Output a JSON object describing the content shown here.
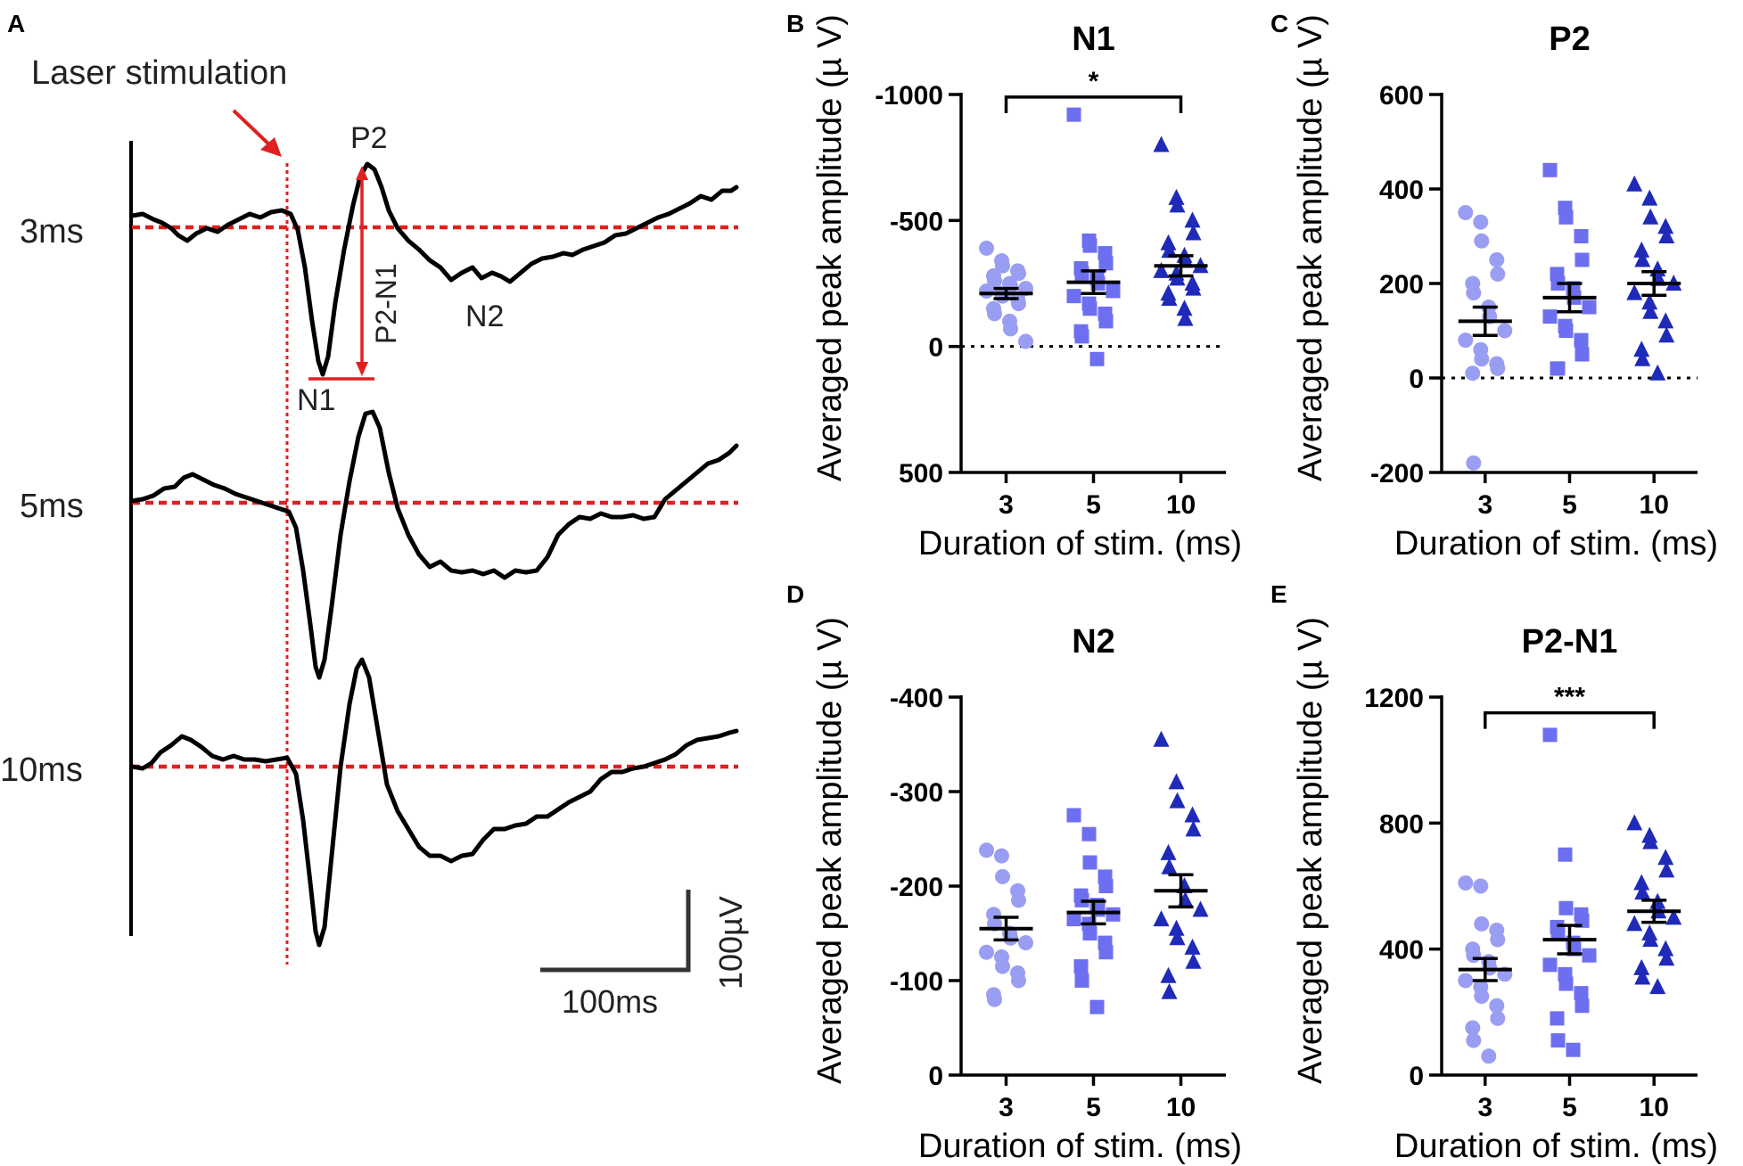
{
  "panel_a": {
    "letter": "A",
    "stim_label": "Laser stimulation",
    "traces": [
      {
        "label": "3ms"
      },
      {
        "label": "5ms"
      },
      {
        "label": "10ms"
      }
    ],
    "peaks": {
      "p2": "P2",
      "n1": "N1",
      "n2": "N2",
      "p2n1": "P2-N1"
    },
    "scale_time": "100ms",
    "scale_amp": "100µV",
    "colors": {
      "stim": "#e02020",
      "trace": "#000000"
    }
  },
  "chart_data": [
    {
      "id": "B",
      "type": "scatter",
      "title": "N1",
      "xlabel": "Duration of stim. (ms)",
      "ylabel": "Averaged peak amplitude (µ V)",
      "categories": [
        "3",
        "5",
        "10"
      ],
      "ylim": [
        500,
        -1000
      ],
      "yticks": [
        -1000,
        -500,
        0,
        500
      ],
      "inverted": true,
      "zero_line": true,
      "significance": {
        "from": 0,
        "to": 2,
        "label": "*",
        "y": -990
      },
      "series": [
        {
          "name": "3",
          "marker": "circle",
          "color": "#9a9ef2",
          "mean": -210,
          "sem": 20,
          "values": [
            -390,
            -340,
            -320,
            -300,
            -290,
            -280,
            -260,
            -250,
            -240,
            -230,
            -220,
            -210,
            -200,
            -190,
            -170,
            -150,
            -130,
            -100,
            -70,
            -20
          ]
        },
        {
          "name": "5",
          "marker": "square",
          "color": "#6d6ff0",
          "mean": -255,
          "sem": 45,
          "values": [
            -920,
            -420,
            -400,
            -370,
            -330,
            -310,
            -290,
            -270,
            -250,
            -220,
            -200,
            -170,
            -150,
            -130,
            -100,
            -60,
            -40,
            50
          ]
        },
        {
          "name": "10",
          "marker": "triangle",
          "color": "#1f2ab8",
          "mean": -320,
          "sem": 40,
          "values": [
            -800,
            -590,
            -560,
            -500,
            -450,
            -410,
            -380,
            -360,
            -340,
            -320,
            -300,
            -290,
            -270,
            -250,
            -230,
            -210,
            -190,
            -150,
            -110
          ]
        }
      ]
    },
    {
      "id": "C",
      "type": "scatter",
      "title": "P2",
      "xlabel": "Duration of stim. (ms)",
      "ylabel": "Averaged peak amplitude (µ V)",
      "categories": [
        "3",
        "5",
        "10"
      ],
      "ylim": [
        -200,
        600
      ],
      "yticks": [
        -200,
        0,
        200,
        400,
        600
      ],
      "inverted": false,
      "zero_line": true,
      "series": [
        {
          "name": "3",
          "marker": "circle",
          "color": "#9a9ef2",
          "mean": 120,
          "sem": 30,
          "values": [
            350,
            330,
            290,
            250,
            220,
            200,
            180,
            150,
            130,
            100,
            80,
            60,
            40,
            30,
            20,
            10,
            -180
          ]
        },
        {
          "name": "5",
          "marker": "square",
          "color": "#6d6ff0",
          "mean": 170,
          "sem": 30,
          "values": [
            440,
            360,
            340,
            300,
            250,
            220,
            200,
            190,
            170,
            150,
            130,
            110,
            100,
            80,
            50,
            20,
            20
          ]
        },
        {
          "name": "10",
          "marker": "triangle",
          "color": "#1f2ab8",
          "mean": 200,
          "sem": 25,
          "values": [
            410,
            380,
            340,
            320,
            300,
            270,
            250,
            230,
            210,
            200,
            180,
            160,
            140,
            120,
            90,
            60,
            40,
            10
          ]
        }
      ]
    },
    {
      "id": "D",
      "type": "scatter",
      "title": "N2",
      "xlabel": "Duration of stim. (ms)",
      "ylabel": "Averaged peak amplitude (µ V)",
      "categories": [
        "3",
        "5",
        "10"
      ],
      "ylim": [
        0,
        -400
      ],
      "yticks": [
        -400,
        -300,
        -200,
        -100,
        0
      ],
      "inverted": true,
      "zero_line": false,
      "series": [
        {
          "name": "3",
          "marker": "circle",
          "color": "#9a9ef2",
          "mean": -155,
          "sem": 12,
          "values": [
            -238,
            -232,
            -210,
            -195,
            -185,
            -170,
            -160,
            -150,
            -145,
            -140,
            -130,
            -125,
            -115,
            -108,
            -100,
            -85,
            -80
          ]
        },
        {
          "name": "5",
          "marker": "square",
          "color": "#6d6ff0",
          "mean": -172,
          "sem": 12,
          "values": [
            -275,
            -255,
            -225,
            -210,
            -200,
            -190,
            -185,
            -180,
            -175,
            -170,
            -165,
            -160,
            -150,
            -140,
            -130,
            -115,
            -100,
            -72
          ]
        },
        {
          "name": "10",
          "marker": "triangle",
          "color": "#1f2ab8",
          "mean": -195,
          "sem": 17,
          "values": [
            -355,
            -310,
            -290,
            -275,
            -260,
            -235,
            -220,
            -200,
            -185,
            -175,
            -165,
            -155,
            -145,
            -135,
            -120,
            -105,
            -88
          ]
        }
      ]
    },
    {
      "id": "E",
      "type": "scatter",
      "title": "P2-N1",
      "xlabel": "Duration of stim. (ms)",
      "ylabel": "Averaged peak amplitude (µ V)",
      "categories": [
        "3",
        "5",
        "10"
      ],
      "ylim": [
        0,
        1200
      ],
      "yticks": [
        0,
        400,
        800,
        1200
      ],
      "inverted": false,
      "zero_line": false,
      "significance": {
        "from": 0,
        "to": 2,
        "label": "***",
        "y": 1150
      },
      "series": [
        {
          "name": "3",
          "marker": "circle",
          "color": "#9a9ef2",
          "mean": 335,
          "sem": 35,
          "values": [
            610,
            600,
            480,
            460,
            430,
            400,
            380,
            360,
            340,
            320,
            300,
            280,
            250,
            220,
            180,
            150,
            110,
            60
          ]
        },
        {
          "name": "5",
          "marker": "square",
          "color": "#6d6ff0",
          "mean": 430,
          "sem": 45,
          "values": [
            1080,
            700,
            530,
            510,
            490,
            470,
            450,
            420,
            400,
            380,
            350,
            320,
            290,
            260,
            220,
            180,
            110,
            80
          ]
        },
        {
          "name": "10",
          "marker": "triangle",
          "color": "#1f2ab8",
          "mean": 520,
          "sem": 35,
          "values": [
            800,
            760,
            740,
            690,
            650,
            610,
            580,
            550,
            520,
            500,
            480,
            450,
            430,
            400,
            370,
            340,
            310,
            280
          ]
        }
      ]
    }
  ]
}
